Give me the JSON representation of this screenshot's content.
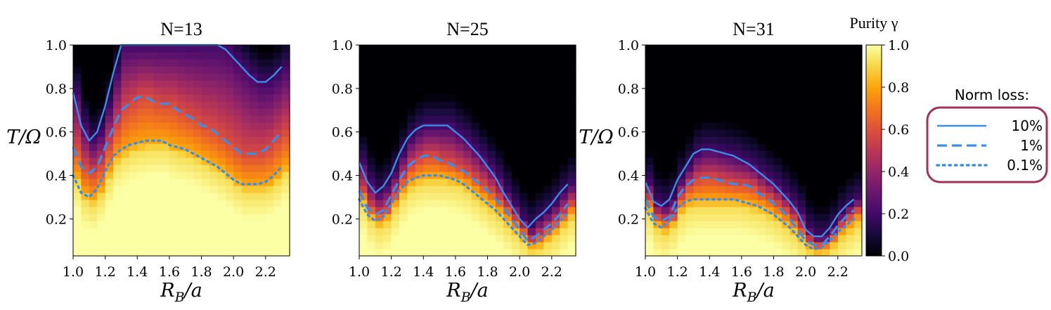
{
  "chart_data": {
    "type": "heatmap",
    "xlabel": "R_B/a",
    "ylabel": "T/Ω",
    "xlim": [
      1.0,
      2.35
    ],
    "ylim": [
      0.03,
      1.0
    ],
    "x_ticks": [
      "1.0",
      "1.2",
      "1.4",
      "1.6",
      "1.8",
      "2.0",
      "2.2"
    ],
    "y_ticks": [
      "0.2",
      "0.4",
      "0.6",
      "0.8",
      "1.0"
    ],
    "x_grid": [
      1.0,
      1.05,
      1.1,
      1.15,
      1.2,
      1.25,
      1.3,
      1.35,
      1.4,
      1.45,
      1.5,
      1.55,
      1.6,
      1.65,
      1.7,
      1.75,
      1.8,
      1.85,
      1.9,
      1.95,
      2.0,
      2.05,
      2.1,
      2.15,
      2.2,
      2.25,
      2.3
    ],
    "colorbar": {
      "title": "Purity γ",
      "colormap": "inferno",
      "range": [
        0.0,
        1.0
      ],
      "ticks": [
        "0.0",
        "0.2",
        "0.4",
        "0.6",
        "0.8",
        "1.0"
      ]
    },
    "legend": {
      "title": "Norm loss:",
      "entries": [
        {
          "label": "10%",
          "style": "solid"
        },
        {
          "label": "1%",
          "style": "dashed"
        },
        {
          "label": "0.1%",
          "style": "dotted"
        }
      ],
      "border_color": "#a3325a",
      "line_color": "#3b8ee8"
    },
    "panels": [
      {
        "title": "N=13",
        "contours": {
          "10%": [
            0.78,
            0.63,
            0.56,
            0.6,
            0.72,
            0.87,
            1.0,
            1.0,
            1.0,
            1.0,
            1.0,
            1.0,
            1.0,
            1.0,
            1.0,
            1.0,
            1.0,
            1.0,
            1.0,
            0.98,
            0.94,
            0.9,
            0.86,
            0.83,
            0.83,
            0.86,
            0.9
          ],
          "1%": [
            0.53,
            0.44,
            0.41,
            0.44,
            0.53,
            0.62,
            0.7,
            0.73,
            0.76,
            0.76,
            0.74,
            0.73,
            0.73,
            0.7,
            0.68,
            0.66,
            0.63,
            0.62,
            0.59,
            0.56,
            0.53,
            0.5,
            0.5,
            0.5,
            0.52,
            0.56,
            0.6
          ],
          "0.1%": [
            0.4,
            0.32,
            0.3,
            0.34,
            0.42,
            0.49,
            0.52,
            0.54,
            0.55,
            0.56,
            0.56,
            0.56,
            0.54,
            0.53,
            0.52,
            0.5,
            0.48,
            0.46,
            0.44,
            0.41,
            0.38,
            0.36,
            0.36,
            0.36,
            0.37,
            0.4,
            0.44
          ]
        }
      },
      {
        "title": "N=25",
        "contours": {
          "10%": [
            0.46,
            0.37,
            0.32,
            0.35,
            0.41,
            0.5,
            0.57,
            0.61,
            0.63,
            0.63,
            0.63,
            0.63,
            0.6,
            0.57,
            0.53,
            0.49,
            0.44,
            0.39,
            0.32,
            0.26,
            0.2,
            0.16,
            0.2,
            0.23,
            0.27,
            0.32,
            0.36
          ],
          "1%": [
            0.33,
            0.25,
            0.22,
            0.24,
            0.31,
            0.38,
            0.44,
            0.47,
            0.49,
            0.49,
            0.47,
            0.46,
            0.44,
            0.42,
            0.39,
            0.36,
            0.33,
            0.29,
            0.25,
            0.2,
            0.15,
            0.1,
            0.12,
            0.15,
            0.18,
            0.22,
            0.27
          ],
          "0.1%": [
            0.29,
            0.22,
            0.19,
            0.21,
            0.27,
            0.33,
            0.37,
            0.39,
            0.4,
            0.4,
            0.4,
            0.39,
            0.38,
            0.36,
            0.33,
            0.3,
            0.27,
            0.24,
            0.2,
            0.16,
            0.12,
            0.08,
            0.09,
            0.12,
            0.15,
            0.19,
            0.23
          ]
        }
      },
      {
        "title": "N=31",
        "contours": {
          "10%": [
            0.37,
            0.28,
            0.26,
            0.29,
            0.38,
            0.44,
            0.5,
            0.52,
            0.52,
            0.51,
            0.5,
            0.49,
            0.47,
            0.45,
            0.42,
            0.39,
            0.36,
            0.32,
            0.28,
            0.23,
            0.15,
            0.12,
            0.12,
            0.16,
            0.22,
            0.26,
            0.29
          ],
          "1%": [
            0.29,
            0.21,
            0.19,
            0.21,
            0.3,
            0.35,
            0.38,
            0.39,
            0.39,
            0.38,
            0.37,
            0.36,
            0.36,
            0.35,
            0.32,
            0.3,
            0.27,
            0.24,
            0.2,
            0.15,
            0.1,
            0.08,
            0.08,
            0.12,
            0.17,
            0.21,
            0.24
          ],
          "0.1%": [
            0.25,
            0.18,
            0.16,
            0.19,
            0.25,
            0.28,
            0.29,
            0.29,
            0.29,
            0.29,
            0.29,
            0.29,
            0.28,
            0.27,
            0.26,
            0.24,
            0.22,
            0.19,
            0.16,
            0.12,
            0.08,
            0.06,
            0.07,
            0.1,
            0.14,
            0.17,
            0.2
          ]
        }
      }
    ]
  }
}
